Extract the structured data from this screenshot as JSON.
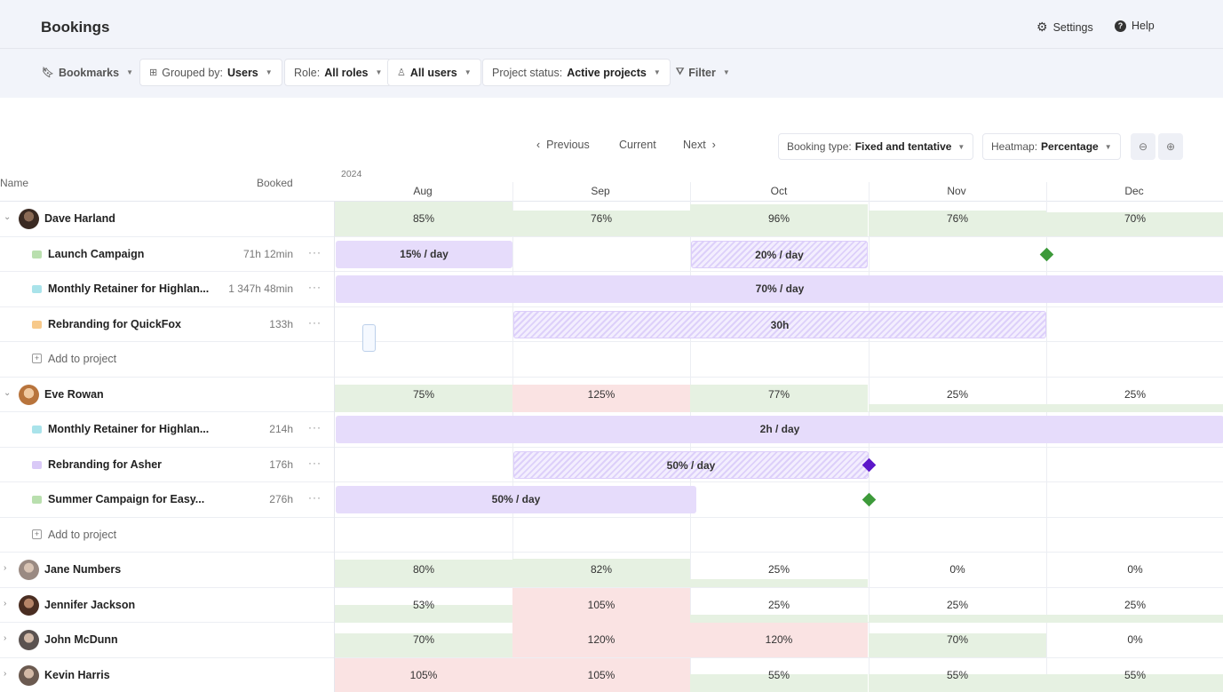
{
  "header": {
    "title": "Bookings",
    "settings_label": "Settings",
    "help_label": "Help"
  },
  "filters": {
    "bookmarks": "Bookmarks",
    "grouped_by_label": "Grouped by:",
    "grouped_by_value": "Users",
    "role_label": "Role:",
    "role_value": "All roles",
    "users_value": "All users",
    "project_status_label": "Project status:",
    "project_status_value": "Active projects",
    "filter": "Filter"
  },
  "nav": {
    "previous": "Previous",
    "current": "Current",
    "next": "Next",
    "booking_type_label": "Booking type:",
    "booking_type_value": "Fixed and tentative",
    "heatmap_label": "Heatmap:",
    "heatmap_value": "Percentage"
  },
  "table": {
    "name_header": "Name",
    "booked_header": "Booked",
    "year": "2024",
    "months": [
      "Aug",
      "Sep",
      "Oct",
      "Nov",
      "Dec"
    ]
  },
  "colors": {
    "heat_ok": "#e6f1e2",
    "heat_over": "#fae3e3",
    "booking_bar": "#e6dcfb",
    "milestone_green": "#3d9a3a",
    "milestone_purple": "#5b16c9"
  },
  "rows": {
    "dave": {
      "name": "Dave Harland",
      "heat": [
        "85%",
        "76%",
        "96%",
        "76%",
        "70%"
      ],
      "projects": [
        {
          "name": "Launch Campaign",
          "hours": "71h 12min",
          "color": "#b9dfae"
        },
        {
          "name": "Monthly Retainer for Highlan...",
          "hours": "1 347h 48min",
          "color": "#a9e3ea"
        },
        {
          "name": "Rebranding for QuickFox",
          "hours": "133h",
          "color": "#f7c98a"
        }
      ],
      "bars": [
        "15% / day",
        "20% / day",
        "70% / day",
        "30h"
      ],
      "add_label": "Add to project"
    },
    "eve": {
      "name": "Eve Rowan",
      "heat": [
        "75%",
        "125%",
        "77%",
        "25%",
        "25%"
      ],
      "projects": [
        {
          "name": "Monthly Retainer for Highlan...",
          "hours": "214h",
          "color": "#a9e3ea"
        },
        {
          "name": "Rebranding for Asher",
          "hours": "176h",
          "color": "#d9c9f7"
        },
        {
          "name": "Summer Campaign for Easy...",
          "hours": "276h",
          "color": "#b9dfae"
        }
      ],
      "bars": [
        "2h / day",
        "50% / day",
        "50% / day"
      ],
      "add_label": "Add to project"
    },
    "jane": {
      "name": "Jane Numbers",
      "heat": [
        "80%",
        "82%",
        "25%",
        "0%",
        "0%"
      ]
    },
    "jennifer": {
      "name": "Jennifer Jackson",
      "heat": [
        "53%",
        "105%",
        "25%",
        "25%",
        "25%"
      ]
    },
    "john": {
      "name": "John McDunn",
      "heat": [
        "70%",
        "120%",
        "120%",
        "70%",
        "0%"
      ]
    },
    "kevin": {
      "name": "Kevin Harris",
      "heat": [
        "105%",
        "105%",
        "55%",
        "55%",
        "55%"
      ]
    }
  }
}
